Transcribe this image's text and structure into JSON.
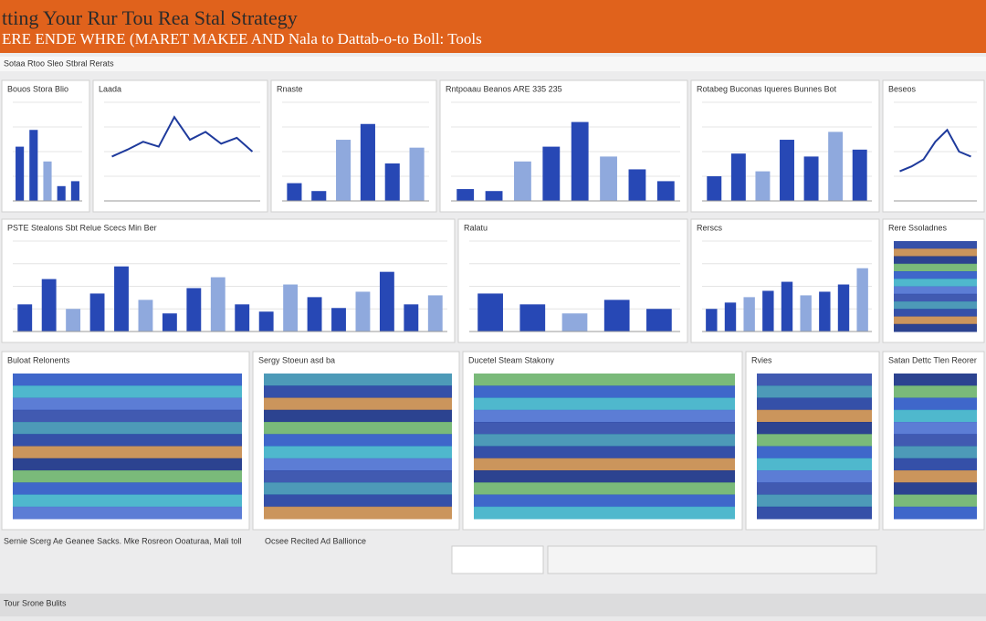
{
  "header": {
    "title": "tting Your Rur Tou Rea Stal Strategy",
    "subtitle": "ERE ENDE WHRE (MARET MAKEE AND Nala to Dattab-o-to Boll: Tools"
  },
  "toolbar": "Sotaa Rtoo Sleo Stbral Rerats",
  "panels": [
    {
      "kind": "bar",
      "title": "Bouos Stora Blio",
      "ylim": [
        0,
        100
      ],
      "values": [
        55,
        72,
        40,
        15,
        20
      ]
    },
    {
      "kind": "line",
      "title": "Laada",
      "ylim": [
        0,
        100
      ],
      "values": [
        45,
        52,
        60,
        55,
        85,
        62,
        70,
        58,
        64,
        50
      ]
    },
    {
      "kind": "bar",
      "title": "Rnaste",
      "ylim": [
        0,
        100
      ],
      "values": [
        18,
        10,
        62,
        78,
        38,
        54
      ]
    },
    {
      "kind": "bar",
      "title": "Rntpoaau Beanos ARE 335 235",
      "ylim": [
        0,
        100
      ],
      "values": [
        12,
        10,
        40,
        55,
        80,
        45,
        32,
        20
      ]
    },
    {
      "kind": "bar",
      "title": "Rotabeg Buconas Iqueres Bunnes Bot",
      "ylim": [
        0,
        100
      ],
      "values": [
        25,
        48,
        30,
        62,
        45,
        70,
        52
      ]
    },
    {
      "kind": "line",
      "title": "Beseos",
      "ylim": [
        0,
        100
      ],
      "values": [
        30,
        35,
        42,
        60,
        72,
        50,
        45
      ]
    },
    {
      "kind": "bar",
      "title": "PSTE Stealons Sbt Relue Scecs Min Ber",
      "ylim": [
        0,
        100
      ],
      "values": [
        30,
        58,
        25,
        42,
        72,
        35,
        20,
        48,
        60,
        30,
        22,
        52,
        38,
        26,
        44,
        66,
        30,
        40
      ]
    },
    {
      "kind": "bar",
      "title": "Ralatu",
      "ylim": [
        0,
        100
      ],
      "values": [
        42,
        30,
        20,
        35,
        25
      ]
    },
    {
      "kind": "bar",
      "title": "Rerscs",
      "ylim": [
        0,
        100
      ],
      "values": [
        25,
        32,
        38,
        45,
        55,
        40,
        44,
        52,
        70
      ]
    },
    {
      "kind": "heat",
      "title": "Rere Ssoladnes"
    },
    {
      "kind": "heat",
      "title": "Buloat Relonents"
    },
    {
      "kind": "heat",
      "title": "Sergy Stoeun asd ba"
    },
    {
      "kind": "heat",
      "title": "Ducetel Steam Stakony"
    },
    {
      "kind": "heat",
      "title": "Rvies"
    },
    {
      "kind": "heat",
      "title": "Satan Dettc Tlen Reorer"
    }
  ],
  "bottom": [
    "Sernie Scerg Ae Geanee Sacks. Mke Rosreon Ooaturaa, Mali toll",
    "Ocsee Recited Ad Ballionce",
    "Tour Srone Bulits"
  ]
}
